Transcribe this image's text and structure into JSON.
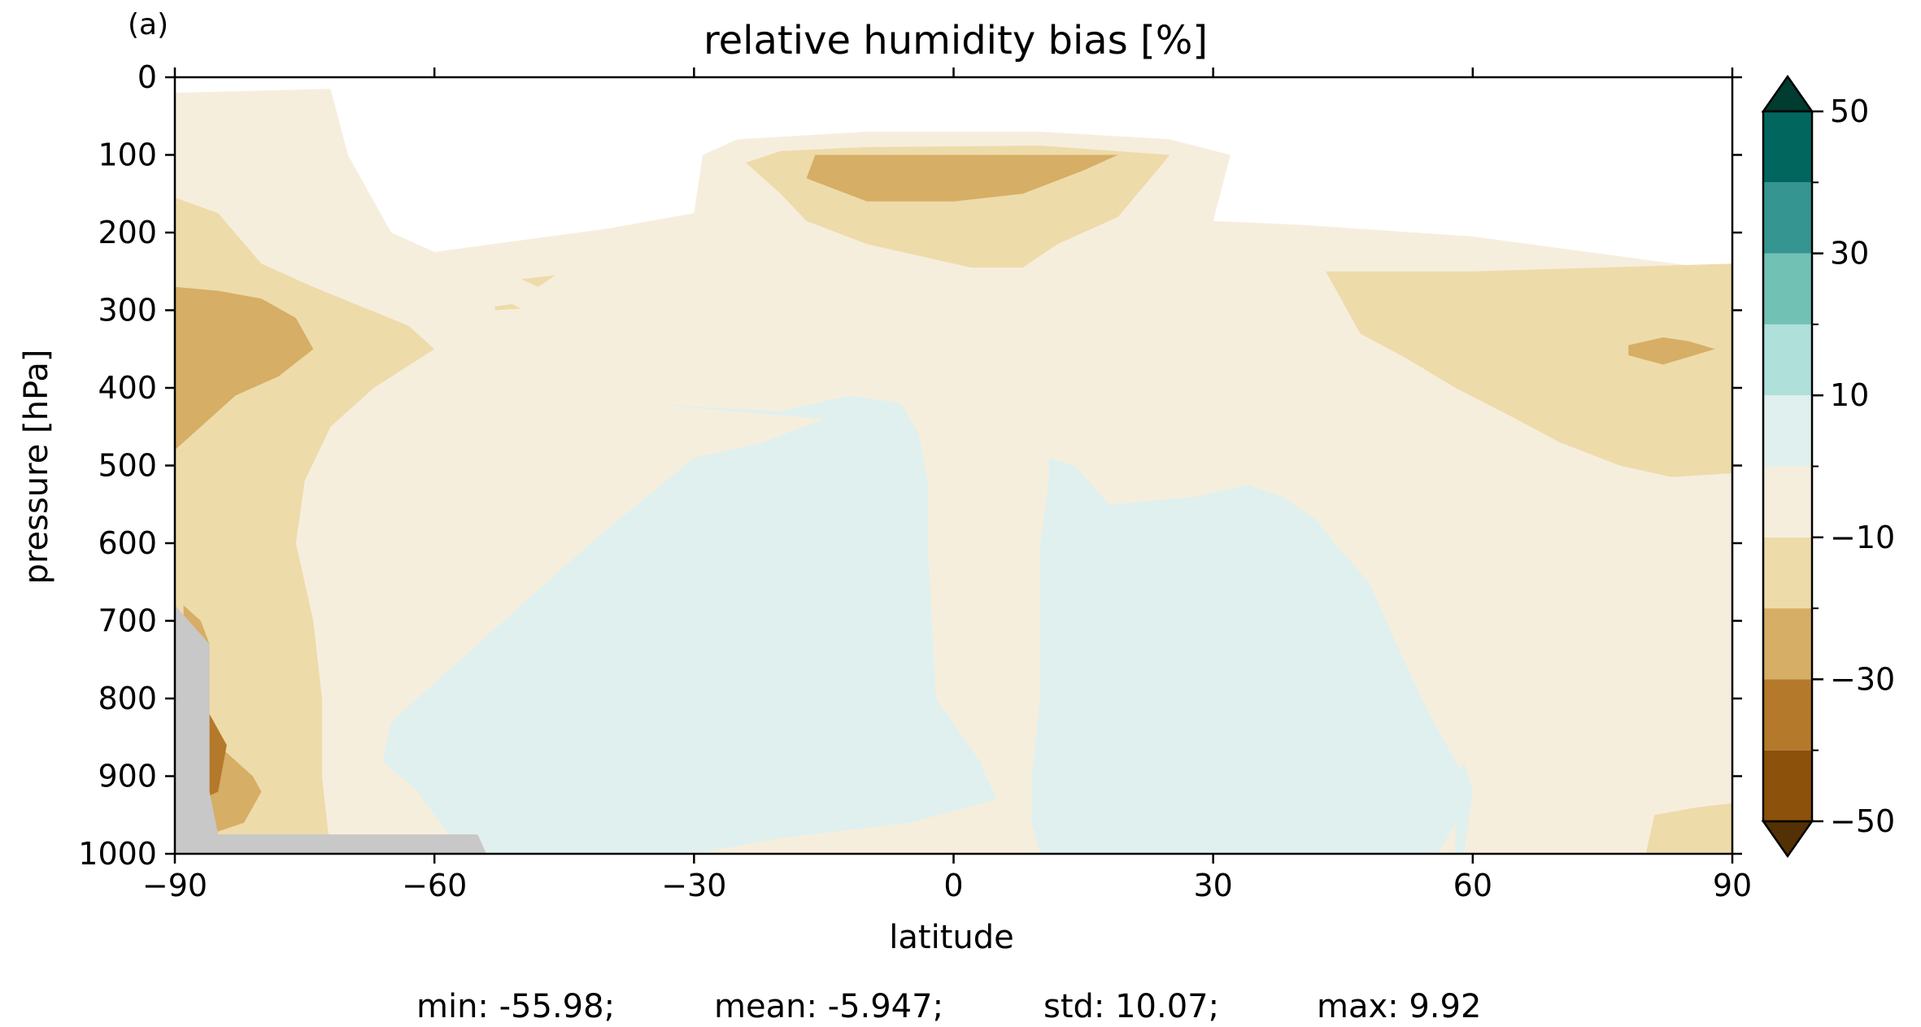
{
  "figure": {
    "panel_label": "(a)",
    "stats": {
      "min": "min: -55.98;",
      "mean": "mean: -5.947;",
      "std": "std: 10.07;",
      "max": "max: 9.92"
    }
  },
  "colors": {
    "level_colors": [
      "#8c510a",
      "#b5792b",
      "#d6ae65",
      "#eedbaa",
      "#f6eedd",
      "#e0f0ee",
      "#afe0da",
      "#72c1b5",
      "#359590",
      "#01665e"
    ],
    "under": "#543005",
    "over": "#003c30",
    "missing": "#c8c8c8"
  },
  "chart_data": {
    "type": "heatmap",
    "subtype": "filled-contour",
    "title": "relative humidity bias [%]",
    "xlabel": "latitude",
    "ylabel": "pressure [hPa]",
    "xlim": [
      -90,
      90
    ],
    "ylim": [
      1000,
      0
    ],
    "xticks": [
      -90,
      -60,
      -30,
      0,
      30,
      60,
      90
    ],
    "yticks": [
      0,
      100,
      200,
      300,
      400,
      500,
      600,
      700,
      800,
      900,
      1000
    ],
    "xtick_labels": [
      "−90",
      "−60",
      "−30",
      "0",
      "30",
      "60",
      "90"
    ],
    "ytick_labels": [
      "0",
      "100",
      "200",
      "300",
      "400",
      "500",
      "600",
      "700",
      "800",
      "900",
      "1000"
    ],
    "colorbar": {
      "levels": [
        -50,
        -40,
        -30,
        -20,
        -10,
        0,
        10,
        20,
        30,
        40,
        50
      ],
      "tick_values": [
        -50,
        -30,
        -10,
        10,
        30,
        50
      ],
      "tick_labels": [
        "−50",
        "−30",
        "−10",
        "10",
        "30",
        "50"
      ],
      "extend": "both"
    },
    "statistics": {
      "min": -55.98,
      "mean": -5.947,
      "std": 10.07,
      "max": 9.92
    },
    "regions": [
      {
        "level": -10,
        "points": [
          [
            -90,
            20
          ],
          [
            -72,
            15
          ],
          [
            -70,
            100
          ],
          [
            -65,
            200
          ],
          [
            -60,
            225
          ],
          [
            -40,
            195
          ],
          [
            -30,
            175
          ],
          [
            -29,
            100
          ],
          [
            -25,
            80
          ],
          [
            -10,
            70
          ],
          [
            10,
            70
          ],
          [
            25,
            80
          ],
          [
            32,
            100
          ],
          [
            30,
            185
          ],
          [
            40,
            190
          ],
          [
            60,
            205
          ],
          [
            90,
            250
          ],
          [
            90,
            1000
          ],
          [
            -90,
            1000
          ]
        ]
      },
      {
        "level": -20,
        "points": [
          [
            -90,
            155
          ],
          [
            -85,
            175
          ],
          [
            -80,
            240
          ],
          [
            -74,
            270
          ],
          [
            -63,
            320
          ],
          [
            -60,
            350
          ],
          [
            -67,
            400
          ],
          [
            -72,
            450
          ],
          [
            -75,
            520
          ],
          [
            -76,
            600
          ],
          [
            -74,
            700
          ],
          [
            -73,
            800
          ],
          [
            -73,
            900
          ],
          [
            -72,
            1000
          ],
          [
            -90,
            1000
          ]
        ]
      },
      {
        "level": -20,
        "points": [
          [
            -20,
            95
          ],
          [
            -10,
            90
          ],
          [
            10,
            88
          ],
          [
            25,
            100
          ],
          [
            19,
            180
          ],
          [
            12,
            215
          ],
          [
            8,
            245
          ],
          [
            2,
            245
          ],
          [
            -10,
            215
          ],
          [
            -17,
            185
          ],
          [
            -20,
            150
          ],
          [
            -24,
            110
          ]
        ]
      },
      {
        "level": -20,
        "points": [
          [
            43,
            250
          ],
          [
            60,
            250
          ],
          [
            75,
            245
          ],
          [
            90,
            240
          ],
          [
            90,
            510
          ],
          [
            83,
            515
          ],
          [
            77,
            500
          ],
          [
            70,
            470
          ],
          [
            65,
            440
          ],
          [
            58,
            400
          ],
          [
            52,
            360
          ],
          [
            47,
            330
          ],
          [
            45,
            290
          ]
        ]
      },
      {
        "level": -20,
        "points": [
          [
            -50,
            260
          ],
          [
            -46,
            255
          ],
          [
            -48,
            270
          ]
        ]
      },
      {
        "level": -20,
        "points": [
          [
            -53,
            295
          ],
          [
            -51,
            292
          ],
          [
            -50,
            298
          ],
          [
            -53,
            300
          ]
        ]
      },
      {
        "level": -30,
        "points": [
          [
            -90,
            270
          ],
          [
            -85,
            275
          ],
          [
            -80,
            285
          ],
          [
            -76,
            310
          ],
          [
            -74,
            350
          ],
          [
            -78,
            385
          ],
          [
            -83,
            410
          ],
          [
            -90,
            480
          ]
        ]
      },
      {
        "level": -30,
        "points": [
          [
            -16,
            100
          ],
          [
            10,
            100
          ],
          [
            19,
            100
          ],
          [
            15,
            120
          ],
          [
            8,
            150
          ],
          [
            0,
            160
          ],
          [
            -10,
            160
          ],
          [
            -17,
            130
          ]
        ]
      },
      {
        "level": -30,
        "points": [
          [
            78,
            345
          ],
          [
            82,
            335
          ],
          [
            85,
            340
          ],
          [
            88,
            350
          ],
          [
            82,
            370
          ],
          [
            78,
            358
          ]
        ]
      },
      {
        "level": -30,
        "points": [
          [
            -89,
            680
          ],
          [
            -87,
            700
          ],
          [
            -86,
            730
          ],
          [
            -86,
            850
          ],
          [
            -83,
            880
          ],
          [
            -81,
            900
          ],
          [
            -80,
            920
          ],
          [
            -82,
            960
          ],
          [
            -86,
            975
          ],
          [
            -89,
            950
          ]
        ]
      },
      {
        "level": -40,
        "points": [
          [
            -86,
            820
          ],
          [
            -84,
            860
          ],
          [
            -85,
            920
          ],
          [
            -87,
            930
          ]
        ]
      },
      {
        "level": 0,
        "points": [
          [
            -36,
            420
          ],
          [
            -20,
            430
          ],
          [
            -12,
            410
          ],
          [
            -6,
            420
          ],
          [
            -4,
            460
          ],
          [
            -3,
            520
          ],
          [
            -3,
            600
          ],
          [
            -2,
            800
          ],
          [
            3,
            880
          ],
          [
            5,
            930
          ],
          [
            -5,
            960
          ],
          [
            -20,
            980
          ],
          [
            -30,
            1000
          ],
          [
            -55,
            1000
          ],
          [
            -58,
            980
          ],
          [
            -62,
            920
          ],
          [
            -66,
            880
          ],
          [
            -65,
            830
          ],
          [
            -58,
            760
          ],
          [
            -50,
            680
          ],
          [
            -42,
            600
          ],
          [
            -30,
            490
          ],
          [
            -22,
            470
          ],
          [
            -15,
            440
          ]
        ]
      },
      {
        "level": 0,
        "points": [
          [
            11,
            490
          ],
          [
            14,
            500
          ],
          [
            18,
            550
          ],
          [
            28,
            540
          ],
          [
            34,
            525
          ],
          [
            38,
            540
          ],
          [
            42,
            570
          ],
          [
            44,
            600
          ],
          [
            48,
            650
          ],
          [
            50,
            700
          ],
          [
            52,
            750
          ],
          [
            55,
            820
          ],
          [
            58,
            880
          ],
          [
            60,
            920
          ],
          [
            56,
            1000
          ],
          [
            10,
            1000
          ],
          [
            9,
            960
          ],
          [
            9,
            900
          ],
          [
            10,
            800
          ],
          [
            10,
            700
          ],
          [
            10,
            600
          ],
          [
            11,
            520
          ]
        ]
      },
      {
        "level": 0,
        "points": [
          [
            59,
            880
          ],
          [
            60,
            920
          ],
          [
            59,
            1000
          ],
          [
            58,
            1000
          ],
          [
            58,
            920
          ]
        ]
      },
      {
        "level": -20,
        "points": [
          [
            81,
            950
          ],
          [
            86,
            940
          ],
          [
            90,
            935
          ],
          [
            90,
            1000
          ],
          [
            80,
            1000
          ]
        ]
      }
    ],
    "missing_regions": [
      {
        "points": [
          [
            -90,
            680
          ],
          [
            -86,
            730
          ],
          [
            -86,
            920
          ],
          [
            -85,
            975
          ],
          [
            -55,
            975
          ],
          [
            -54,
            1000
          ],
          [
            -90,
            1000
          ]
        ]
      }
    ]
  }
}
